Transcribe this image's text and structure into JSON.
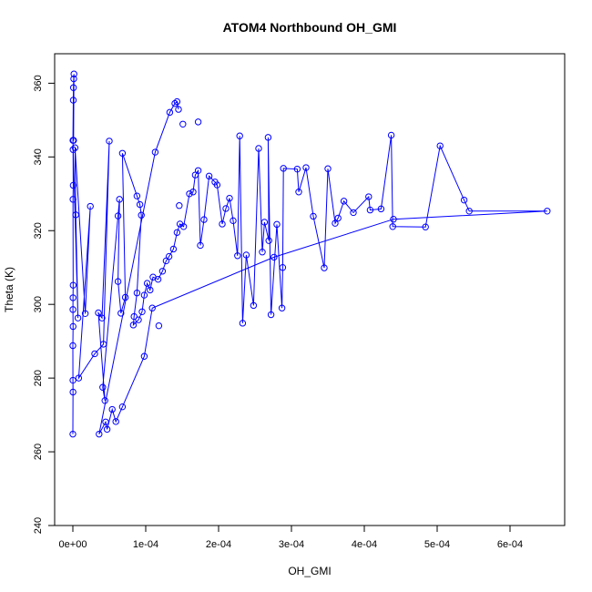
{
  "chart_data": {
    "type": "line",
    "title": "ATOM4 Northbound OH_GMI",
    "xlabel": "OH_GMI",
    "ylabel": "Theta (K)",
    "xlim": [
      -2.5e-05,
      0.000675
    ],
    "ylim": [
      240,
      368
    ],
    "x_ticks": [
      {
        "value": 0,
        "label": "0e+00"
      },
      {
        "value": 0.0001,
        "label": "1e-04"
      },
      {
        "value": 0.0002,
        "label": "2e-04"
      },
      {
        "value": 0.0003,
        "label": "3e-04"
      },
      {
        "value": 0.0004,
        "label": "4e-04"
      },
      {
        "value": 0.0005,
        "label": "5e-04"
      },
      {
        "value": 0.0006,
        "label": "6e-04"
      }
    ],
    "y_ticks": [
      {
        "value": 240,
        "label": "240"
      },
      {
        "value": 260,
        "label": "260"
      },
      {
        "value": 280,
        "label": "280"
      },
      {
        "value": 300,
        "label": "300"
      },
      {
        "value": 320,
        "label": "320"
      },
      {
        "value": 340,
        "label": "340"
      },
      {
        "value": 360,
        "label": "360"
      }
    ],
    "grid": false,
    "legend": "none",
    "series": [
      {
        "color": "#0000ff",
        "marker": "open-circle",
        "points": [
          [
            0.0,
            264.8
          ],
          [
            2e-07,
            276.2
          ],
          [
            1e-07,
            279.4
          ],
          [
            0.0,
            288.8
          ],
          [
            3e-07,
            294.0
          ],
          [
            1e-07,
            298.6
          ],
          [
            2e-07,
            301.8
          ],
          [
            4e-07,
            305.2
          ],
          [
            2e-07,
            328.5
          ],
          [
            5e-07,
            332.3
          ],
          [
            3e-07,
            342.0
          ],
          [
            1e-07,
            344.5
          ],
          [
            6e-07,
            355.4
          ],
          [
            8e-07,
            358.8
          ],
          [
            1.2e-06,
            361.2
          ],
          [
            1.5e-06,
            362.5
          ],
          [
            1e-06,
            344.5
          ],
          [
            3e-06,
            342.5
          ],
          [
            4e-06,
            324.3
          ],
          [
            7e-06,
            296.3
          ],
          [
            1.7e-05,
            297.5
          ],
          [
            2.4e-05,
            326.6
          ],
          [
            8e-06,
            280.0
          ],
          [
            3e-05,
            286.6
          ],
          [
            4.2e-05,
            289.2
          ],
          [
            5e-05,
            344.3
          ],
          [
            4e-05,
            296.3
          ],
          [
            3.5e-05,
            297.7
          ],
          [
            4.4e-05,
            273.9
          ],
          [
            4.1e-05,
            277.5
          ],
          [
            6.2e-05,
            324.0
          ],
          [
            6.4e-05,
            328.5
          ],
          [
            6.2e-05,
            306.2
          ],
          [
            6.6e-05,
            297.6
          ],
          [
            7.2e-05,
            301.9
          ],
          [
            6.8e-05,
            341.0
          ],
          [
            8.8e-05,
            329.4
          ],
          [
            9.2e-05,
            327.1
          ],
          [
            9.4e-05,
            324.2
          ],
          [
            8.8e-05,
            303.1
          ],
          [
            8.4e-05,
            296.7
          ],
          [
            8.3e-05,
            294.4
          ],
          [
            9e-05,
            295.8
          ],
          [
            9.5e-05,
            298.0
          ],
          [
            9.8e-05,
            302.5
          ],
          [
            0.000102,
            305.7
          ],
          [
            0.000106,
            303.9
          ],
          [
            0.00011,
            307.4
          ],
          [
            0.000117,
            306.8
          ],
          [
            0.000123,
            309.0
          ],
          [
            0.000128,
            311.8
          ],
          [
            0.000132,
            313.0
          ],
          [
            0.000138,
            315.0
          ],
          [
            0.000143,
            319.5
          ],
          [
            0.000147,
            321.8
          ],
          [
            0.000152,
            321.1
          ],
          [
            0.00016,
            330.0
          ],
          [
            0.000165,
            330.5
          ],
          [
            0.000168,
            335.1
          ],
          [
            0.000172,
            336.3
          ],
          [
            0.000175,
            316.0
          ],
          [
            0.00018,
            323.0
          ],
          [
            0.000187,
            334.8
          ],
          [
            0.000195,
            333.2
          ],
          [
            0.000198,
            332.4
          ],
          [
            0.000205,
            321.8
          ],
          [
            0.00021,
            326.0
          ],
          [
            0.000215,
            328.8
          ],
          [
            0.00022,
            322.7
          ],
          [
            0.000226,
            313.2
          ],
          [
            0.000229,
            345.7
          ],
          [
            0.000233,
            294.9
          ],
          [
            0.000238,
            313.4
          ],
          [
            0.000248,
            299.7
          ],
          [
            0.000255,
            342.3
          ],
          [
            0.00026,
            314.2
          ],
          [
            0.000263,
            322.3
          ],
          [
            0.000269,
            317.3
          ],
          [
            0.000268,
            345.3
          ],
          [
            0.000272,
            297.2
          ],
          [
            0.00028,
            321.7
          ],
          [
            0.000287,
            299.0
          ],
          [
            0.000288,
            310.0
          ],
          [
            0.000289,
            336.9
          ],
          [
            0.000308,
            336.7
          ],
          [
            0.00031,
            330.5
          ],
          [
            0.00032,
            337.1
          ],
          [
            0.00033,
            323.9
          ],
          [
            0.000345,
            309.9
          ],
          [
            0.00035,
            336.8
          ],
          [
            0.00036,
            322.0
          ],
          [
            0.000364,
            323.4
          ],
          [
            0.000372,
            328.0
          ],
          [
            0.000385,
            324.9
          ],
          [
            0.000406,
            329.2
          ],
          [
            0.000408,
            325.6
          ],
          [
            0.000423,
            325.9
          ],
          [
            0.000437,
            345.9
          ],
          [
            0.000439,
            321.1
          ],
          [
            0.000484,
            321.0
          ],
          [
            0.000504,
            343.0
          ],
          [
            0.000537,
            328.3
          ],
          [
            0.000544,
            325.3
          ],
          [
            0.000651,
            325.3
          ],
          [
            0.00044,
            323.1
          ],
          [
            0.000276,
            312.8
          ],
          [
            0.000109,
            299.0
          ],
          [
            9.8e-05,
            285.9
          ],
          [
            6.8e-05,
            272.2
          ],
          [
            5.9e-05,
            268.2
          ],
          [
            5.4e-05,
            271.5
          ],
          [
            4.7e-05,
            266.1
          ],
          [
            4.5e-05,
            268.1
          ],
          [
            3.6e-05,
            264.8
          ],
          [
            0.000113,
            341.3
          ],
          [
            0.000133,
            352.1
          ],
          [
            0.00014,
            354.5
          ],
          [
            0.000143,
            355.0
          ],
          [
            0.000145,
            352.9
          ],
          [
            0.000151,
            348.9
          ],
          [
            0.000172,
            349.5
          ],
          [
            0.000146,
            326.8
          ],
          [
            0.000118,
            294.2
          ]
        ],
        "path_order": [
          0,
          1,
          2,
          3,
          4,
          5,
          6,
          7,
          8,
          9,
          10,
          11,
          12,
          13,
          14,
          15,
          16,
          11,
          19,
          18,
          17,
          20,
          21,
          22,
          23,
          24,
          25,
          26,
          27,
          28,
          29,
          30,
          31,
          32,
          33,
          34,
          35,
          36,
          37,
          38,
          39,
          40,
          41,
          42,
          43,
          44,
          45,
          46,
          47,
          48,
          49,
          50,
          51,
          52,
          53,
          54,
          55,
          56,
          57,
          58,
          59,
          60,
          61,
          62,
          63,
          64,
          65,
          66,
          67,
          68,
          69,
          70,
          71,
          72,
          73,
          74,
          75,
          76,
          77,
          78,
          79,
          80,
          81,
          82,
          83,
          84,
          85,
          86,
          87,
          88,
          89,
          90,
          91,
          92,
          93,
          94,
          95,
          96,
          97,
          98,
          99,
          100,
          101,
          102,
          103,
          104,
          105,
          106,
          107,
          108,
          109,
          110,
          111,
          112,
          113,
          114,
          115,
          116,
          117,
          118
        ]
      }
    ]
  }
}
